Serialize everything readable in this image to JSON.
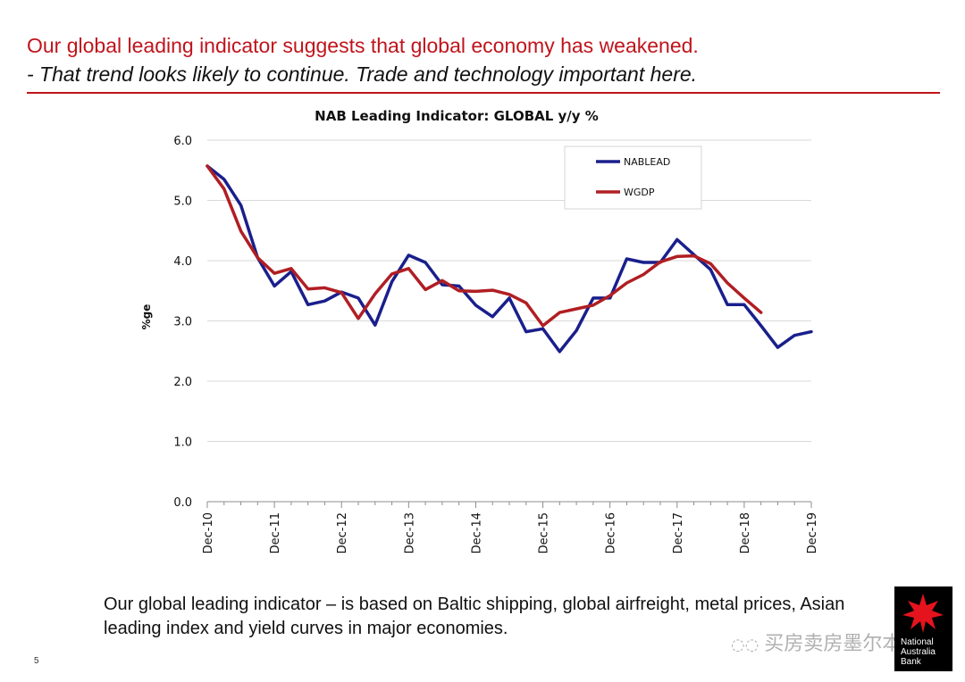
{
  "header": {
    "title": "Our global leading indicator suggests that global economy has weakened.",
    "subtitle": "- That trend looks likely to continue.  Trade and technology important here."
  },
  "footer": {
    "description": "Our global leading indicator – is based on Baltic shipping, global airfreight, metal prices, Asian leading index and yield curves in major economies.",
    "page_number": "5",
    "watermark": "买房卖房墨尔本",
    "logo_text": "National Australia Bank"
  },
  "colors": {
    "accent_red": "#c0141c",
    "nablead": "#1a1f8c",
    "wgdp": "#b01e23"
  },
  "chart_data": {
    "type": "line",
    "title": "NAB Leading Indicator: GLOBAL y/y %",
    "xlabel": "",
    "ylabel": "%ge",
    "ylim": [
      0,
      6
    ],
    "yticks": [
      "0.0",
      "1.0",
      "2.0",
      "3.0",
      "4.0",
      "5.0",
      "6.0"
    ],
    "x_tick_labels": [
      "Dec-10",
      "Dec-11",
      "Dec-12",
      "Dec-13",
      "Dec-14",
      "Dec-15",
      "Dec-16",
      "Dec-17",
      "Dec-18",
      "Dec-19"
    ],
    "x_start": "2010-12",
    "x_frequency": "quarterly",
    "grid": "horizontal",
    "legend_position": "top-right",
    "series": [
      {
        "name": "NABLEAD",
        "color": "#1a1f8c",
        "values": [
          5.57,
          5.35,
          4.92,
          4.05,
          3.58,
          3.82,
          3.27,
          3.33,
          3.48,
          3.38,
          2.93,
          3.65,
          4.09,
          3.97,
          3.6,
          3.58,
          3.26,
          3.07,
          3.38,
          2.82,
          2.87,
          2.49,
          2.84,
          3.38,
          3.38,
          4.03,
          3.97,
          3.97,
          4.35,
          4.1,
          3.85,
          3.27,
          3.27,
          2.92,
          2.56,
          2.76,
          2.82
        ]
      },
      {
        "name": "WGDP",
        "color": "#b01e23",
        "values": [
          5.57,
          5.19,
          4.49,
          4.05,
          3.79,
          3.87,
          3.53,
          3.55,
          3.47,
          3.04,
          3.45,
          3.78,
          3.87,
          3.52,
          3.67,
          3.5,
          3.49,
          3.51,
          3.44,
          3.3,
          2.92,
          3.14,
          3.2,
          3.26,
          3.42,
          3.63,
          3.77,
          3.98,
          4.07,
          4.08,
          3.95,
          3.63,
          3.38,
          3.14
        ]
      }
    ]
  }
}
